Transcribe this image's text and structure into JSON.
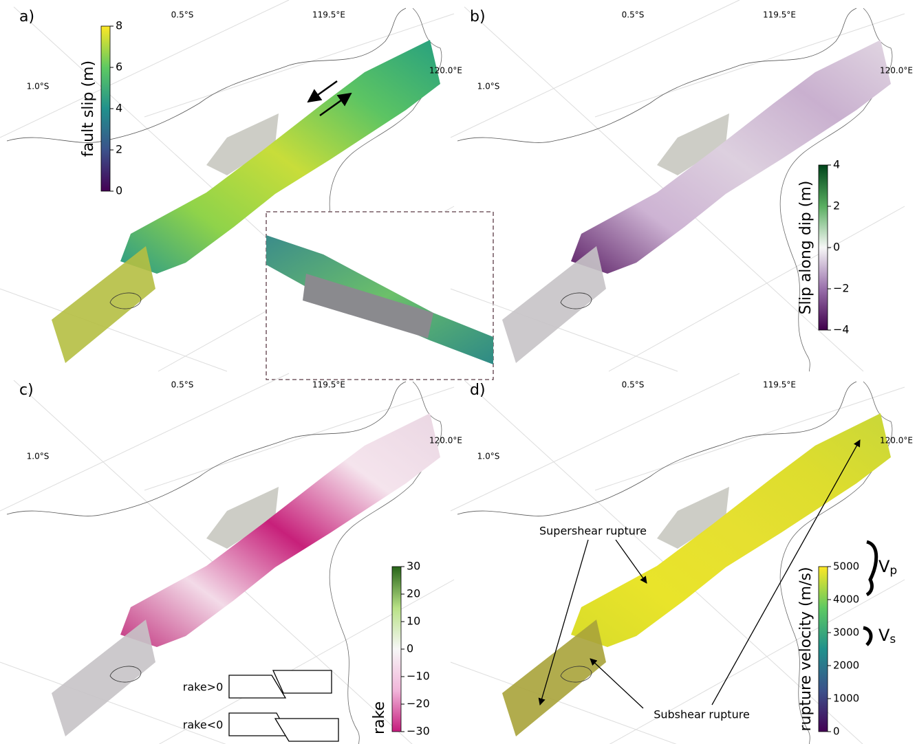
{
  "panels": [
    {
      "label": "a)",
      "map_labels": [
        "0.5°S",
        "119.5°E",
        "1.0°S",
        "120.0°E"
      ],
      "colorbar": {
        "label": "fault slip (m)",
        "lim": [
          0,
          8
        ],
        "ticks": [
          0,
          2,
          4,
          6,
          8
        ],
        "colors": [
          "#440154",
          "#3b528b",
          "#21918c",
          "#5ec962",
          "#fde725"
        ]
      }
    },
    {
      "label": "b)",
      "map_labels": [
        "0.5°S",
        "119.5°E",
        "1.0°S",
        "120.0°E"
      ],
      "colorbar": {
        "label": "Slip along dip (m)",
        "lim": [
          -4,
          4
        ],
        "ticks": [
          {
            "value": -4,
            "label": "−4"
          },
          {
            "value": -2,
            "label": "−2"
          },
          0,
          2,
          4
        ],
        "colors": [
          "#40004b",
          "#9970ab",
          "#f7f7f7",
          "#5aae61",
          "#00441b"
        ]
      }
    },
    {
      "label": "c)",
      "map_labels": [
        "0.5°S",
        "119.5°E",
        "1.0°S",
        "120.0°E"
      ],
      "colorbar": {
        "label": "rake",
        "lim": [
          -30,
          30
        ],
        "ticks": [
          {
            "value": -30,
            "label": "−30"
          },
          {
            "value": -20,
            "label": "−20"
          },
          {
            "value": -10,
            "label": "−10"
          },
          0,
          10,
          20,
          30
        ],
        "colors": [
          "#c51b7d",
          "#f1b6da",
          "#f7f7f7",
          "#b8e186",
          "#276419"
        ]
      },
      "sketch_labels": [
        "rake>0",
        "rake<0"
      ]
    },
    {
      "label": "d)",
      "map_labels": [
        "0.5°S",
        "119.5°E",
        "1.0°S",
        "120.0°E"
      ],
      "colorbar": {
        "label": "rupture velocity (m/s)",
        "lim": [
          0,
          5000
        ],
        "ticks": [
          0,
          1000,
          2000,
          3000,
          4000,
          5000
        ],
        "colors": [
          "#440154",
          "#3b528b",
          "#21918c",
          "#5ec962",
          "#fde725"
        ]
      },
      "annotations": [
        "Supershear rupture",
        "Subshear rupture"
      ],
      "wave_speeds": [
        {
          "symbol": "V",
          "subscript": "p"
        },
        {
          "symbol": "V",
          "subscript": "s"
        }
      ]
    }
  ]
}
